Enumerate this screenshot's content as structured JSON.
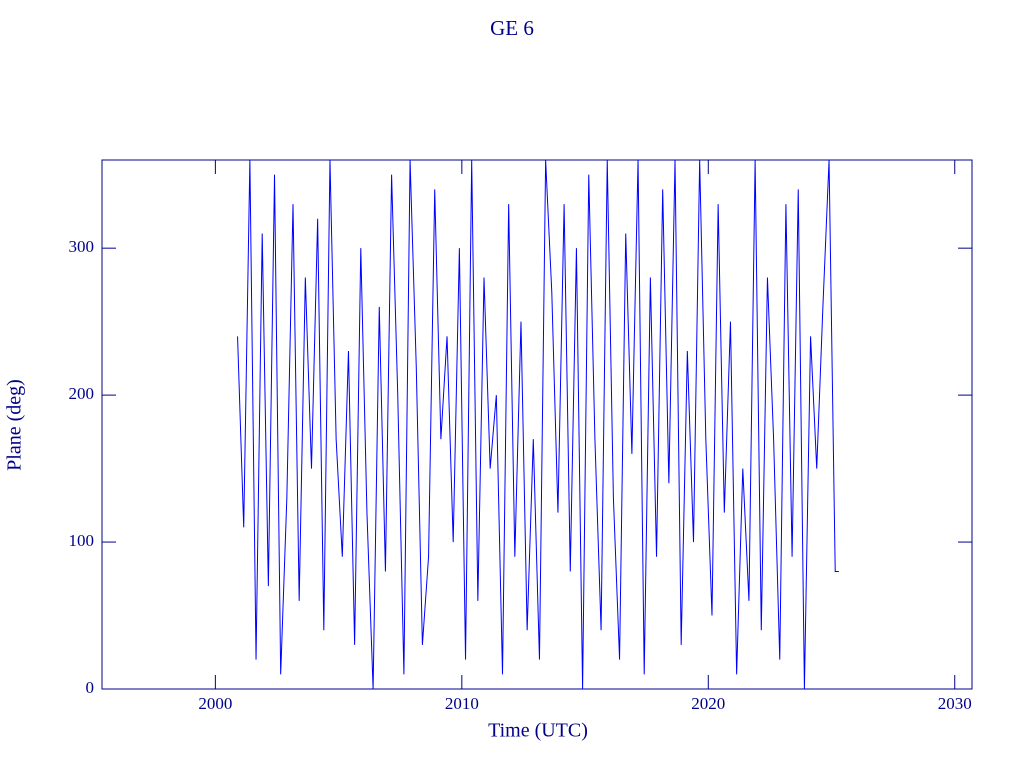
{
  "chart_data": {
    "type": "line",
    "title": "GE 6",
    "x_label": "Time (UTC)",
    "y_label": "Plane (deg)",
    "xlim": [
      1995.4,
      2030.7
    ],
    "xticks": [
      2000,
      2010,
      2020,
      2030
    ],
    "ylim": [
      0,
      360
    ],
    "yticks": [
      0,
      100,
      200,
      300
    ],
    "series": [
      {
        "color": "#0000ff",
        "x": [
          2000.9,
          2001.15,
          2001.4,
          2001.65,
          2001.9,
          2002.15,
          2002.4,
          2002.65,
          2002.9,
          2003.15,
          2003.4,
          2003.65,
          2003.9,
          2004.15,
          2004.4,
          2004.65,
          2004.9,
          2005.15,
          2005.4,
          2005.65,
          2005.9,
          2006.15,
          2006.4,
          2006.65,
          2006.9,
          2007.15,
          2007.4,
          2007.65,
          2007.9,
          2008.15,
          2008.4,
          2008.65,
          2008.9,
          2009.15,
          2009.4,
          2009.65,
          2009.9,
          2010.15,
          2010.4,
          2010.65,
          2010.9,
          2011.15,
          2011.4,
          2011.65,
          2011.9,
          2012.15,
          2012.4,
          2012.65,
          2012.9,
          2013.15,
          2013.4,
          2013.65,
          2013.9,
          2014.15,
          2014.4,
          2014.65,
          2014.9,
          2015.15,
          2015.4,
          2015.65,
          2015.9,
          2016.15,
          2016.4,
          2016.65,
          2016.9,
          2017.15,
          2017.4,
          2017.65,
          2017.9,
          2018.15,
          2018.4,
          2018.65,
          2018.9,
          2019.15,
          2019.4,
          2019.65,
          2019.9,
          2020.15,
          2020.4,
          2020.65,
          2020.9,
          2021.15,
          2021.4,
          2021.65,
          2021.9,
          2022.15,
          2022.4,
          2022.65,
          2022.9,
          2023.15,
          2023.4,
          2023.65,
          2023.9,
          2024.15,
          2024.4,
          2024.65,
          2024.9,
          2025.15,
          2025.3
        ],
        "values": [
          240,
          110,
          360,
          20,
          310,
          70,
          350,
          10,
          130,
          330,
          60,
          280,
          150,
          320,
          40,
          360,
          170,
          90,
          230,
          30,
          300,
          120,
          0,
          260,
          80,
          350,
          200,
          10,
          360,
          220,
          30,
          90,
          340,
          170,
          240,
          100,
          300,
          20,
          360,
          60,
          280,
          150,
          200,
          10,
          330,
          90,
          250,
          40,
          170,
          20,
          360,
          270,
          120,
          330,
          80,
          300,
          0,
          350,
          170,
          40,
          360,
          130,
          20,
          310,
          160,
          360,
          10,
          280,
          90,
          340,
          140,
          360,
          30,
          230,
          100,
          360,
          170,
          50,
          330,
          120,
          250,
          10,
          150,
          60,
          360,
          40,
          280,
          170,
          20,
          330,
          90,
          340,
          0,
          240,
          150,
          260,
          360,
          80,
          80
        ]
      }
    ]
  }
}
